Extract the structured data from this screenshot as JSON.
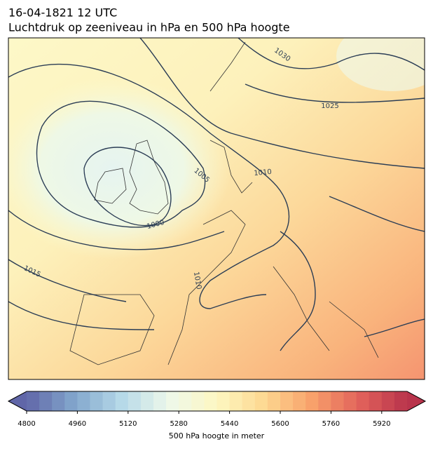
{
  "title": "16-04-1821 12 UTC",
  "subtitle": "Luchtdruk op zeeniveau in hPa en 500 hPa hoogte",
  "contour_labels": [
    1030,
    1025,
    1010,
    1005,
    1000,
    1015,
    1010
  ],
  "colorbar": {
    "label": "500 hPa hoogte in meter",
    "lim": [
      4800,
      6000
    ],
    "step": 40,
    "ticks": [
      4800,
      4960,
      5120,
      5280,
      5440,
      5600,
      5760,
      5920
    ],
    "colors": [
      "#6066a8",
      "#82a6cc",
      "#b6d9e8",
      "#eef8ea",
      "#fdf7c2",
      "#fdd891",
      "#f8a16b",
      "#e2625b",
      "#b9344c"
    ]
  }
}
